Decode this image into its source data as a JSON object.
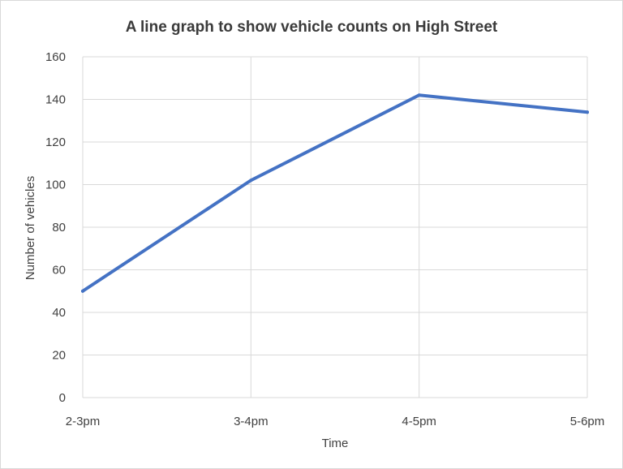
{
  "chart_data": {
    "type": "line",
    "title": "A line graph to show vehicle counts on High Street",
    "xlabel": "Time",
    "ylabel": "Number of vehicles",
    "categories": [
      "2-3pm",
      "3-4pm",
      "4-5pm",
      "5-6pm"
    ],
    "series": [
      {
        "values": [
          50,
          102,
          142,
          134
        ],
        "color": "#4472c4"
      }
    ],
    "ylim": [
      0,
      160
    ],
    "yticks": [
      0,
      20,
      40,
      60,
      80,
      100,
      120,
      140,
      160
    ],
    "grid": true,
    "legend": "none"
  }
}
